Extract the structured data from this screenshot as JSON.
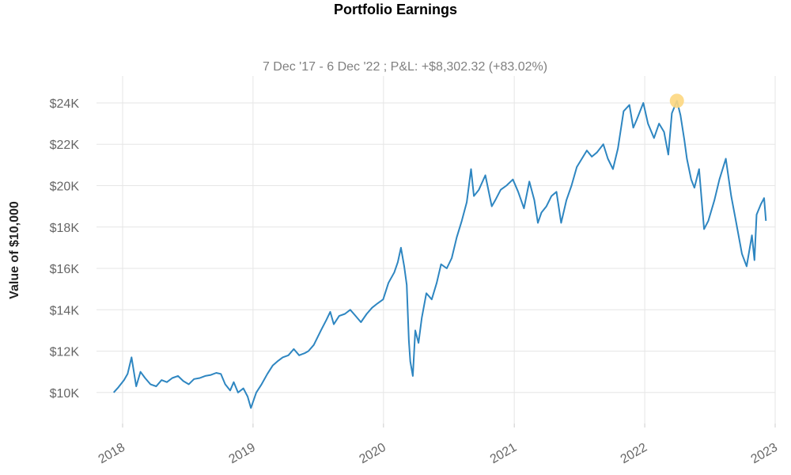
{
  "chart_data": {
    "type": "line",
    "title": "Portfolio Earnings",
    "subtitle": "7 Dec '17 -  6 Dec '22 ;  P&L: +$8,302.32 (+83.02%)",
    "ylabel": "Value of  $10,000",
    "xlabel": "",
    "x_ticks": [
      "2018",
      "2019",
      "2020",
      "2021",
      "2022",
      "2023"
    ],
    "y_ticks": [
      "$10K",
      "$12K",
      "$14K",
      "$16K",
      "$18K",
      "$20K",
      "$22K",
      "$24K"
    ],
    "y_tick_values": [
      10000,
      12000,
      14000,
      16000,
      18000,
      20000,
      22000,
      24000
    ],
    "ylim": [
      8500,
      25300
    ],
    "xlim": [
      "2017-10-20",
      "2023-01-01"
    ],
    "grid": true,
    "line_color": "#2e86c1",
    "peak_marker_color": "#fdd77f",
    "peak": {
      "date": "2022-04-01",
      "value": 24100
    },
    "series": [
      {
        "points": [
          [
            "2017-12-07",
            10000
          ],
          [
            "2017-12-20",
            10250
          ],
          [
            "2018-01-05",
            10600
          ],
          [
            "2018-01-15",
            10900
          ],
          [
            "2018-01-26",
            11700
          ],
          [
            "2018-02-08",
            10300
          ],
          [
            "2018-02-20",
            11000
          ],
          [
            "2018-03-05",
            10700
          ],
          [
            "2018-03-20",
            10400
          ],
          [
            "2018-04-05",
            10300
          ],
          [
            "2018-04-20",
            10600
          ],
          [
            "2018-05-05",
            10500
          ],
          [
            "2018-05-20",
            10700
          ],
          [
            "2018-06-05",
            10800
          ],
          [
            "2018-06-20",
            10550
          ],
          [
            "2018-07-05",
            10400
          ],
          [
            "2018-07-20",
            10650
          ],
          [
            "2018-08-05",
            10700
          ],
          [
            "2018-08-20",
            10800
          ],
          [
            "2018-09-05",
            10850
          ],
          [
            "2018-09-20",
            10950
          ],
          [
            "2018-10-03",
            10900
          ],
          [
            "2018-10-15",
            10400
          ],
          [
            "2018-10-29",
            10100
          ],
          [
            "2018-11-08",
            10500
          ],
          [
            "2018-11-20",
            10000
          ],
          [
            "2018-12-05",
            10200
          ],
          [
            "2018-12-17",
            9800
          ],
          [
            "2018-12-26",
            9250
          ],
          [
            "2019-01-10",
            10000
          ],
          [
            "2019-01-25",
            10400
          ],
          [
            "2019-02-10",
            10900
          ],
          [
            "2019-02-25",
            11300
          ],
          [
            "2019-03-10",
            11500
          ],
          [
            "2019-03-25",
            11700
          ],
          [
            "2019-04-10",
            11800
          ],
          [
            "2019-04-25",
            12100
          ],
          [
            "2019-05-10",
            11800
          ],
          [
            "2019-05-25",
            11900
          ],
          [
            "2019-06-05",
            12000
          ],
          [
            "2019-06-20",
            12300
          ],
          [
            "2019-07-10",
            13000
          ],
          [
            "2019-07-25",
            13500
          ],
          [
            "2019-08-05",
            13900
          ],
          [
            "2019-08-15",
            13300
          ],
          [
            "2019-08-30",
            13700
          ],
          [
            "2019-09-15",
            13800
          ],
          [
            "2019-09-30",
            14000
          ],
          [
            "2019-10-15",
            13700
          ],
          [
            "2019-10-30",
            13400
          ],
          [
            "2019-11-15",
            13800
          ],
          [
            "2019-11-30",
            14100
          ],
          [
            "2019-12-15",
            14300
          ],
          [
            "2019-12-31",
            14500
          ],
          [
            "2020-01-15",
            15300
          ],
          [
            "2020-01-31",
            15800
          ],
          [
            "2020-02-10",
            16300
          ],
          [
            "2020-02-19",
            17000
          ],
          [
            "2020-02-28",
            16100
          ],
          [
            "2020-03-06",
            15200
          ],
          [
            "2020-03-12",
            12500
          ],
          [
            "2020-03-16",
            11500
          ],
          [
            "2020-03-23",
            10800
          ],
          [
            "2020-03-30",
            13000
          ],
          [
            "2020-04-08",
            12400
          ],
          [
            "2020-04-17",
            13600
          ],
          [
            "2020-04-30",
            14800
          ],
          [
            "2020-05-15",
            14500
          ],
          [
            "2020-05-29",
            15300
          ],
          [
            "2020-06-10",
            16200
          ],
          [
            "2020-06-26",
            16000
          ],
          [
            "2020-07-10",
            16500
          ],
          [
            "2020-07-24",
            17500
          ],
          [
            "2020-08-07",
            18300
          ],
          [
            "2020-08-21",
            19200
          ],
          [
            "2020-09-02",
            20800
          ],
          [
            "2020-09-10",
            19500
          ],
          [
            "2020-09-24",
            19800
          ],
          [
            "2020-10-12",
            20500
          ],
          [
            "2020-10-30",
            19000
          ],
          [
            "2020-11-09",
            19300
          ],
          [
            "2020-11-24",
            19800
          ],
          [
            "2020-12-10",
            20000
          ],
          [
            "2020-12-28",
            20300
          ],
          [
            "2021-01-12",
            19700
          ],
          [
            "2021-01-28",
            18900
          ],
          [
            "2021-02-12",
            20200
          ],
          [
            "2021-02-26",
            19300
          ],
          [
            "2021-03-08",
            18200
          ],
          [
            "2021-03-18",
            18700
          ],
          [
            "2021-04-01",
            19000
          ],
          [
            "2021-04-15",
            19500
          ],
          [
            "2021-04-29",
            19700
          ],
          [
            "2021-05-12",
            18200
          ],
          [
            "2021-05-27",
            19300
          ],
          [
            "2021-06-10",
            20000
          ],
          [
            "2021-06-25",
            20900
          ],
          [
            "2021-07-09",
            21300
          ],
          [
            "2021-07-23",
            21700
          ],
          [
            "2021-08-06",
            21400
          ],
          [
            "2021-08-20",
            21600
          ],
          [
            "2021-09-07",
            22000
          ],
          [
            "2021-09-20",
            21300
          ],
          [
            "2021-10-04",
            20800
          ],
          [
            "2021-10-18",
            21800
          ],
          [
            "2021-11-03",
            23600
          ],
          [
            "2021-11-19",
            23900
          ],
          [
            "2021-11-30",
            22800
          ],
          [
            "2021-12-10",
            23200
          ],
          [
            "2021-12-28",
            24000
          ],
          [
            "2022-01-10",
            23000
          ],
          [
            "2022-01-27",
            22300
          ],
          [
            "2022-02-10",
            23000
          ],
          [
            "2022-02-24",
            22600
          ],
          [
            "2022-03-08",
            21500
          ],
          [
            "2022-03-18",
            23500
          ],
          [
            "2022-04-01",
            24100
          ],
          [
            "2022-04-11",
            23400
          ],
          [
            "2022-04-22",
            22200
          ],
          [
            "2022-04-29",
            21300
          ],
          [
            "2022-05-11",
            20300
          ],
          [
            "2022-05-20",
            19900
          ],
          [
            "2022-06-02",
            20800
          ],
          [
            "2022-06-16",
            17900
          ],
          [
            "2022-06-28",
            18300
          ],
          [
            "2022-07-15",
            19300
          ],
          [
            "2022-07-29",
            20300
          ],
          [
            "2022-08-16",
            21300
          ],
          [
            "2022-08-31",
            19500
          ],
          [
            "2022-09-13",
            18300
          ],
          [
            "2022-09-30",
            16700
          ],
          [
            "2022-10-13",
            16100
          ],
          [
            "2022-10-28",
            17600
          ],
          [
            "2022-11-04",
            16400
          ],
          [
            "2022-11-10",
            18600
          ],
          [
            "2022-11-22",
            19100
          ],
          [
            "2022-12-01",
            19400
          ],
          [
            "2022-12-06",
            18302
          ]
        ]
      }
    ]
  }
}
